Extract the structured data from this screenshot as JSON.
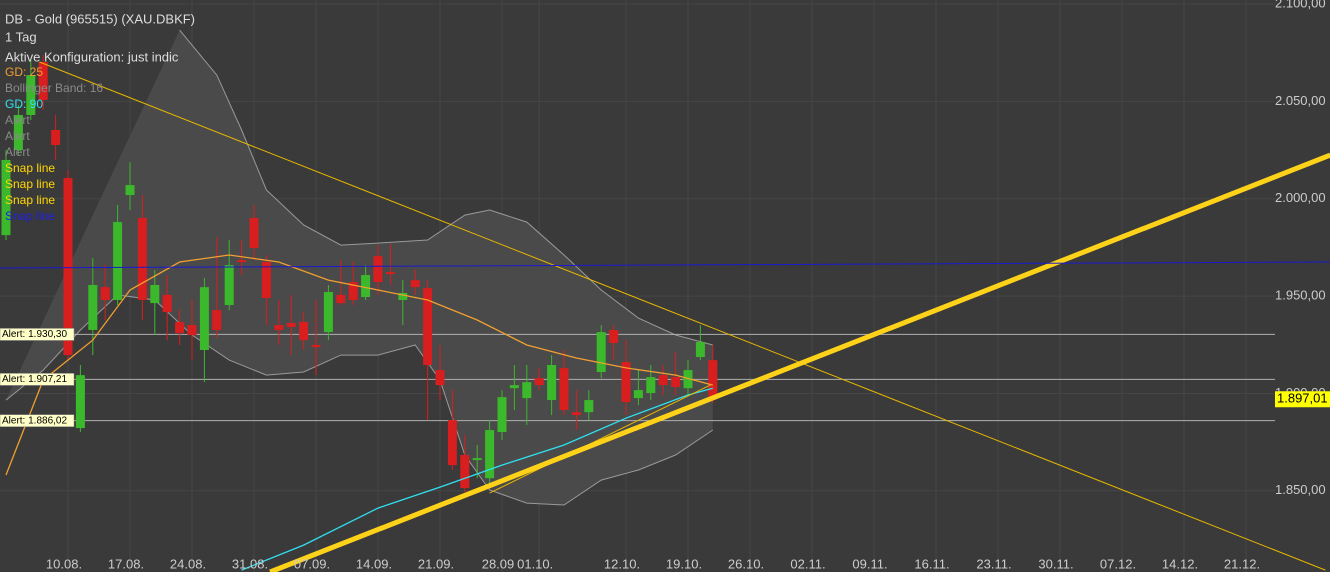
{
  "chart_data": {
    "type": "candlestick",
    "title": "DB - Gold (965515) (XAU.DBKF)",
    "subtitle": "1 Tag",
    "configuration": "Aktive Konfiguration: just indic",
    "legend": [
      {
        "label": "GD: 25",
        "color": "#f0a030"
      },
      {
        "label": "Bollinger Band: 16",
        "color": "#8a8a8a"
      },
      {
        "label": "GD: 90",
        "color": "#30e0f0"
      },
      {
        "label": "Alert",
        "color": "#8a8a8a"
      },
      {
        "label": "Alert",
        "color": "#8a8a8a"
      },
      {
        "label": "Alert",
        "color": "#8a8a8a"
      },
      {
        "label": "Snap line",
        "color": "#ffd700"
      },
      {
        "label": "Snap line",
        "color": "#ffd700"
      },
      {
        "label": "Snap line",
        "color": "#ffd700"
      },
      {
        "label": "Snap line",
        "color": "#2020e0"
      }
    ],
    "up_color": "#3cb82c",
    "down_color": "#d81e1e",
    "open": [
      1981.3,
      2025.0,
      2043.0,
      2070.2,
      2035.3,
      2010.6,
      1882.2,
      1932.6,
      1954.6,
      1948.0,
      2001.9,
      1990.1,
      1946.4,
      1950.6,
      1936.7,
      1935.1,
      1922.3,
      1942.8,
      1945.4,
      1968.5,
      1990.1,
      1967.5,
      1935.1,
      1936.2,
      1936.7,
      1924.9,
      1931.5,
      1950.6,
      1957.2,
      1949.5,
      1970.5,
      1962.3,
      1948.0,
      1958.2,
      1954.1,
      1912.0,
      1886.3,
      1868.4,
      1865.8,
      1856.5,
      1880.2,
      1902.7,
      1897.6,
      1907.9,
      1896.6,
      1913.0,
      1890.4,
      1890.4,
      1911.0,
      1932.6,
      1916.1,
      1897.6,
      1900.2,
      1909.4,
      1908.4,
      1902.7,
      1918.7,
      1917.1
    ],
    "high": [
      2025.0,
      2048.1,
      2071.2,
      2073.8,
      2043.0,
      2014.7,
      1914.6,
      1969.5,
      1966.0,
      1996.8,
      2018.8,
      2001.9,
      1963.4,
      1960.8,
      1942.8,
      1948.0,
      1959.3,
      1980.3,
      1978.8,
      1978.8,
      1996.8,
      1971.1,
      1948.0,
      1950.6,
      1941.8,
      1948.0,
      1955.7,
      1968.5,
      1967.5,
      1965.9,
      1976.2,
      1976.7,
      1958.2,
      1963.4,
      1958.2,
      1924.9,
      1901.7,
      1878.6,
      1873.5,
      1886.3,
      1901.7,
      1914.6,
      1914.6,
      1913.0,
      1919.7,
      1922.3,
      1901.7,
      1901.7,
      1935.1,
      1935.1,
      1927.4,
      1912.0,
      1914.6,
      1914.6,
      1921.3,
      1917.1,
      1935.1,
      1924.9
    ],
    "low": [
      1978.8,
      2022.4,
      2040.4,
      2045.6,
      2019.9,
      1917.1,
      1880.2,
      1919.7,
      1937.7,
      1945.4,
      1994.2,
      1937.7,
      1930.0,
      1927.4,
      1924.9,
      1917.1,
      1905.8,
      1928.5,
      1942.8,
      1960.8,
      1968.5,
      1935.1,
      1924.9,
      1919.7,
      1922.3,
      1909.4,
      1927.4,
      1945.4,
      1945.4,
      1948.0,
      1950.6,
      1955.7,
      1935.1,
      1950.6,
      1886.3,
      1896.6,
      1860.7,
      1849.3,
      1856.5,
      1853.0,
      1876.0,
      1891.5,
      1883.8,
      1901.7,
      1888.9,
      1888.9,
      1881.2,
      1886.3,
      1907.9,
      1917.1,
      1888.9,
      1894.0,
      1896.6,
      1899.2,
      1899.2,
      1899.2,
      1917.1,
      1895.0
    ],
    "close": [
      2019.9,
      2043.0,
      2063.5,
      2050.7,
      2027.6,
      1919.7,
      1909.4,
      1955.7,
      1948.0,
      1988.0,
      2007.0,
      1948.0,
      1955.7,
      1941.8,
      1931.0,
      1930.0,
      1954.6,
      1932.6,
      1965.9,
      1967.5,
      1974.7,
      1949.0,
      1932.6,
      1934.1,
      1927.4,
      1923.8,
      1952.1,
      1946.4,
      1948.0,
      1960.8,
      1957.2,
      1961.3,
      1951.6,
      1954.6,
      1914.6,
      1904.3,
      1863.2,
      1851.4,
      1866.8,
      1881.2,
      1898.1,
      1904.3,
      1905.8,
      1904.3,
      1914.6,
      1891.5,
      1888.9,
      1896.6,
      1931.5,
      1925.9,
      1895.6,
      1901.7,
      1908.4,
      1904.3,
      1903.3,
      1912.0,
      1926.4,
      1897.0
    ],
    "bollinger": [
      {
        "color": "#9a9a9a",
        "x": [
          14,
          17,
          19,
          21,
          24,
          27,
          30,
          34,
          37,
          39,
          42,
          45,
          48,
          51,
          54,
          57
        ],
        "values": [
          2086.6,
          2063.5,
          2035.3,
          2004.5,
          1986.5,
          1976.2,
          1977.2,
          1978.8,
          1991.6,
          1994.2,
          1988.0,
          1971.1,
          1953.1,
          1938.7,
          1930.0,
          1924.9
        ]
      },
      {
        "color": "#9a9a9a",
        "x": [
          0,
          3,
          6,
          9,
          12,
          15,
          18,
          21,
          24,
          27,
          30,
          33,
          35,
          37,
          39,
          42,
          45,
          48,
          51,
          54,
          57
        ],
        "values": [
          1896.6,
          1912.0,
          1932.6,
          1950.6,
          1948.0,
          1930.0,
          1917.1,
          1909.4,
          1911.0,
          1919.7,
          1919.7,
          1924.9,
          1906.9,
          1868.4,
          1850.4,
          1843.7,
          1842.7,
          1855.5,
          1860.7,
          1868.4,
          1881.2
        ]
      }
    ],
    "series": [
      {
        "color": "#f0a030",
        "x": [
          0,
          3,
          7,
          10,
          14,
          18,
          22,
          26,
          30,
          34,
          38,
          42,
          46,
          50,
          54,
          57
        ],
        "values": [
          1858.1,
          1906.9,
          1927.4,
          1953.1,
          1967.5,
          1971.1,
          1967.5,
          1958.2,
          1953.1,
          1948.0,
          1937.7,
          1924.9,
          1918.2,
          1913.1,
          1909.4,
          1904.3
        ]
      },
      {
        "color": "#30e0f0",
        "x": [
          19,
          24,
          30,
          35,
          40,
          45,
          50,
          55,
          57
        ],
        "values": [
          1809.3,
          1822.1,
          1841.1,
          1851.9,
          1863.2,
          1873.5,
          1887.3,
          1899.2,
          1902.7
        ]
      }
    ],
    "snap_lines": [
      {
        "color": "#e8b800",
        "width": 1,
        "x": [
          2.7,
          106.4
        ],
        "values": [
          2070.2,
          1809.3
        ]
      },
      {
        "color": "#e8b800",
        "width": 1,
        "x": [
          39.0,
          56.8
        ],
        "values": [
          1848.8,
          1904.3
        ]
      },
      {
        "color": "#ffd21a",
        "width": 5,
        "x": [
          21.3,
          106.8
        ],
        "values": [
          1808.3,
          2022.4
        ]
      },
      {
        "color": "#1a1ad0",
        "width": 1,
        "x": [
          -0.5,
          106.8
        ],
        "values": [
          1964.4,
          1967.5
        ]
      }
    ],
    "alerts": [
      {
        "value": 1930.3,
        "label": "Alert: 1.930,30"
      },
      {
        "value": 1907.21,
        "label": "Alert: 1.907,21"
      },
      {
        "value": 1886.02,
        "label": "Alert: 1.886,02"
      }
    ],
    "last_price": {
      "value": 1897.01,
      "label": "1.897,01"
    },
    "ylim": [
      1808.3,
      2102.05
    ],
    "yticks": [
      {
        "value": 1850,
        "label": "1.850,00"
      },
      {
        "value": 1900,
        "label": "1.900,00"
      },
      {
        "value": 1950,
        "label": "1.950,00"
      },
      {
        "value": 2000,
        "label": "2.000,00"
      },
      {
        "value": 2050,
        "label": "2.050,00"
      },
      {
        "value": 2100,
        "label": "2.100,00"
      }
    ],
    "xticks": [
      {
        "value": 5,
        "label": "10.08."
      },
      {
        "value": 10,
        "label": "17.08."
      },
      {
        "value": 15,
        "label": "24.08."
      },
      {
        "value": 20,
        "label": "31.08."
      },
      {
        "value": 25,
        "label": "07.09."
      },
      {
        "value": 30,
        "label": "14.09."
      },
      {
        "value": 35,
        "label": "21.09."
      },
      {
        "value": 40,
        "label": "28.09"
      },
      {
        "value": 43,
        "label": "01.10."
      },
      {
        "value": 50,
        "label": "12.10."
      },
      {
        "value": 55,
        "label": "19.10."
      },
      {
        "value": 60,
        "label": "26.10."
      },
      {
        "value": 65,
        "label": "02.11."
      },
      {
        "value": 70,
        "label": "09.11."
      },
      {
        "value": 75,
        "label": "16.11."
      },
      {
        "value": 80,
        "label": "23.11."
      },
      {
        "value": 85,
        "label": "30.11."
      },
      {
        "value": 90,
        "label": "07.12."
      },
      {
        "value": 95,
        "label": "14.12."
      },
      {
        "value": 100,
        "label": "21.12."
      }
    ],
    "grid": true
  }
}
